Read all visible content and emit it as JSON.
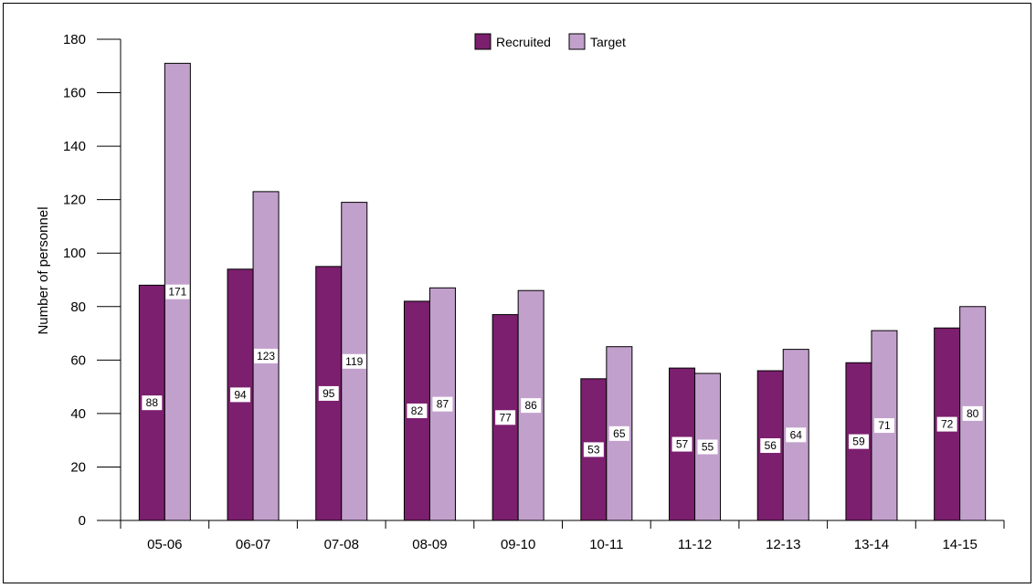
{
  "chart_data": {
    "type": "bar",
    "title": "",
    "xlabel": "",
    "ylabel": "Number of personnel",
    "ylim": [
      0,
      180
    ],
    "yticks": [
      0,
      20,
      40,
      60,
      80,
      100,
      120,
      140,
      160,
      180
    ],
    "categories": [
      "05-06",
      "06-07",
      "07-08",
      "08-09",
      "09-10",
      "10-11",
      "11-12",
      "12-13",
      "13-14",
      "14-15"
    ],
    "series": [
      {
        "name": "Recruited",
        "color": "#7b1f6e",
        "values": [
          88,
          94,
          95,
          82,
          77,
          53,
          57,
          56,
          59,
          72
        ]
      },
      {
        "name": "Target",
        "color": "#c2a0cc",
        "values": [
          171,
          123,
          119,
          87,
          86,
          65,
          55,
          64,
          71,
          80
        ]
      }
    ],
    "grid": false,
    "legend": "top-center",
    "data_labels": true
  }
}
